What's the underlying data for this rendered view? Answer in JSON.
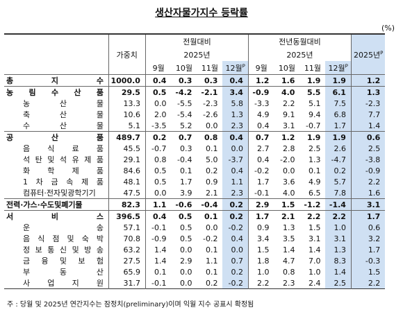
{
  "title": "생산자물가지수 등락률",
  "unit": "(%)",
  "header": {
    "weight": "가중치",
    "mom": "전월대비",
    "yoy": "전년동월대비",
    "year": "2025년",
    "months": [
      "9월",
      "10월",
      "11월",
      "12월"
    ],
    "prelim": "P",
    "annual": "2025년"
  },
  "rows": [
    {
      "label": "총 지 수",
      "cells": [
        "1000.0",
        "0.4",
        "0.3",
        "0.3",
        "0.4",
        "1.2",
        "1.6",
        "1.9",
        "1.9",
        "1.2"
      ]
    },
    {
      "label": "농 림 수 산 품",
      "cells": [
        "29.5",
        "0.5",
        "-4.2",
        "-2.1",
        "3.4",
        "-0.9",
        "4.0",
        "5.5",
        "6.1",
        "1.3"
      ]
    },
    {
      "label": "농 산 물",
      "cells": [
        "13.3",
        "0.0",
        "-5.5",
        "-2.3",
        "5.8",
        "-3.3",
        "2.2",
        "5.1",
        "7.5",
        "-2.3"
      ]
    },
    {
      "label": "축 산 물",
      "cells": [
        "10.6",
        "2.0",
        "-5.4",
        "-2.6",
        "1.3",
        "4.9",
        "9.1",
        "9.4",
        "6.8",
        "7.7"
      ]
    },
    {
      "label": "수 산 물",
      "cells": [
        "5.1",
        "-3.5",
        "5.2",
        "0.0",
        "2.3",
        "0.4",
        "3.1",
        "-0.7",
        "1.7",
        "1.4"
      ]
    },
    {
      "label": "공 산 품",
      "cells": [
        "489.7",
        "0.2",
        "0.7",
        "0.8",
        "0.4",
        "0.7",
        "1.2",
        "1.9",
        "1.9",
        "0.6"
      ]
    },
    {
      "label": "음 식 료 품",
      "cells": [
        "45.5",
        "-0.7",
        "0.3",
        "0.1",
        "0.0",
        "2.7",
        "2.8",
        "2.5",
        "2.6",
        "2.5"
      ]
    },
    {
      "label": "석 탄 및 석 유 제 품",
      "cells": [
        "29.1",
        "0.8",
        "-0.4",
        "5.0",
        "-3.7",
        "0.4",
        "-2.0",
        "1.3",
        "-4.7",
        "-3.8"
      ]
    },
    {
      "label": "화 학 제 품",
      "cells": [
        "84.6",
        "0.5",
        "0.1",
        "0.2",
        "0.4",
        "-0.2",
        "0.0",
        "0.1",
        "0.2",
        "-0.9"
      ]
    },
    {
      "label": "1 차 금 속 제 품",
      "cells": [
        "48.1",
        "0.5",
        "1.7",
        "0.9",
        "1.1",
        "1.7",
        "3.6",
        "4.9",
        "5.7",
        "2.2"
      ]
    },
    {
      "label": "컴퓨터·전자및광학기기",
      "cells": [
        "47.5",
        "0.0",
        "3.9",
        "2.1",
        "2.3",
        "-0.1",
        "4.0",
        "6.5",
        "7.8",
        "1.6"
      ]
    },
    {
      "label": "전력·가스·수도및폐기물",
      "cells": [
        "82.3",
        "1.1",
        "-0.6",
        "-0.4",
        "0.2",
        "2.9",
        "1.5",
        "-1.2",
        "-1.4",
        "3.1"
      ]
    },
    {
      "label": "서 비 스",
      "cells": [
        "396.5",
        "0.4",
        "0.5",
        "0.1",
        "0.2",
        "1.7",
        "2.1",
        "2.2",
        "2.2",
        "1.7"
      ]
    },
    {
      "label": "운 송",
      "cells": [
        "57.1",
        "-0.1",
        "0.5",
        "0.0",
        "-0.2",
        "0.9",
        "1.3",
        "1.5",
        "1.0",
        "0.6"
      ]
    },
    {
      "label": "음 식 점 및 숙 박",
      "cells": [
        "70.8",
        "-0.9",
        "0.5",
        "-0.2",
        "0.4",
        "3.4",
        "3.5",
        "3.1",
        "3.1",
        "3.2"
      ]
    },
    {
      "label": "정 보 통 신 및 방 송",
      "cells": [
        "63.2",
        "1.4",
        "0.0",
        "0.1",
        "0.0",
        "1.5",
        "1.4",
        "1.4",
        "1.3",
        "1.7"
      ]
    },
    {
      "label": "금 융 및 보 험",
      "cells": [
        "27.5",
        "1.4",
        "2.9",
        "1.1",
        "0.7",
        "1.8",
        "4.7",
        "7.0",
        "8.3",
        "-0.3"
      ]
    },
    {
      "label": "부 동 산",
      "cells": [
        "65.9",
        "0.1",
        "0.0",
        "0.1",
        "0.2",
        "1.0",
        "0.8",
        "1.0",
        "1.4",
        "1.5"
      ]
    },
    {
      "label": "사 업 지 원",
      "cells": [
        "31.7",
        "-0.1",
        "0.0",
        "0.2",
        "-0.2",
        "2.2",
        "2.3",
        "2.4",
        "2.5",
        "2.2"
      ]
    }
  ],
  "note": "주 : 당월 및 2025년 연간지수는 잠정치(preliminary)이며 익월 지수 공표시 확정됨"
}
